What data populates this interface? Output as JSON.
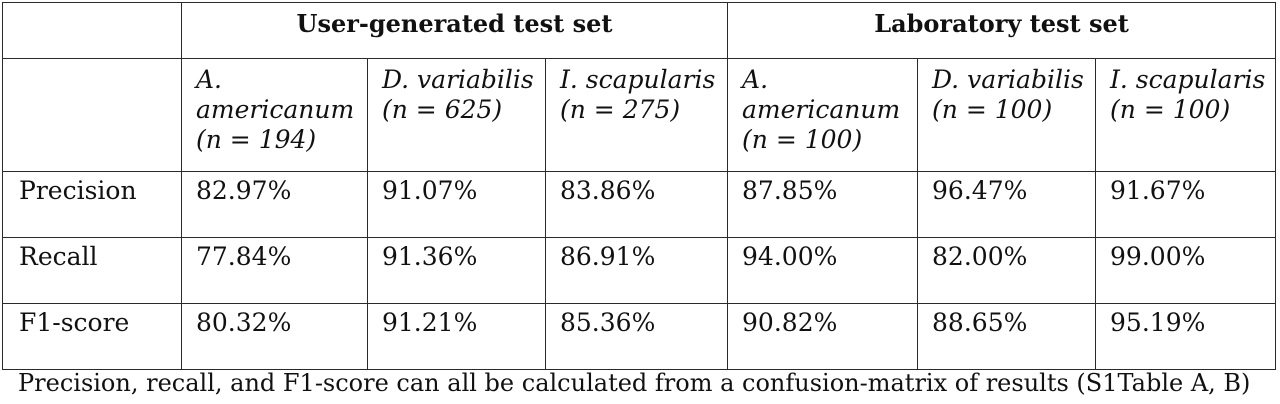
{
  "table": {
    "groups": [
      {
        "label": "User-generated test set"
      },
      {
        "label": "Laboratory test set"
      }
    ],
    "species": [
      {
        "name": "A. americanum",
        "n": "(n = 194)"
      },
      {
        "name": "D. variabilis",
        "n": "(n = 625)"
      },
      {
        "name": "I. scapularis",
        "n": "(n = 275)"
      },
      {
        "name": "A. americanum",
        "n": "(n = 100)"
      },
      {
        "name": "D. variabilis",
        "n": "(n = 100)"
      },
      {
        "name": "I. scapularis",
        "n": "(n = 100)"
      }
    ],
    "rows": [
      {
        "label": "Precision",
        "values": [
          "82.97%",
          "91.07%",
          "83.86%",
          "87.85%",
          "96.47%",
          "91.67%"
        ]
      },
      {
        "label": "Recall",
        "values": [
          "77.84%",
          "91.36%",
          "86.91%",
          "94.00%",
          "82.00%",
          "99.00%"
        ]
      },
      {
        "label": "F1-score",
        "values": [
          "80.32%",
          "91.21%",
          "85.36%",
          "90.82%",
          "88.65%",
          "95.19%"
        ]
      }
    ]
  },
  "caption": "Precision, recall, and F1-score can all be calculated from a confusion-matrix of results (S1Table A, B)"
}
